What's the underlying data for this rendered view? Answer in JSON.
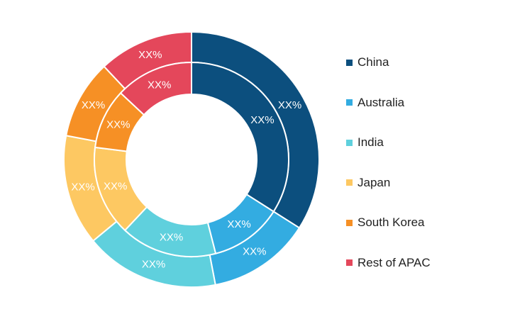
{
  "chart_data": {
    "type": "pie",
    "categories": [
      "China",
      "Australia",
      "India",
      "Japan",
      "South Korea",
      "Rest of APAC"
    ],
    "colors": [
      "#0c4f7e",
      "#33ace1",
      "#5fd0dd",
      "#fdc862",
      "#f69025",
      "#e4475b"
    ],
    "series": [
      {
        "values": [
          34,
          13,
          17,
          14,
          10,
          12
        ],
        "labels": [
          "XX%",
          "XX%",
          "XX%",
          "XX%",
          "XX%",
          "XX%"
        ]
      },
      {
        "values": [
          34,
          12,
          16,
          15,
          10,
          13
        ],
        "labels": [
          "XX%",
          "XX%",
          "XX%",
          "XX%",
          "XX%",
          "XX%"
        ]
      }
    ],
    "legend": {
      "placement": "right",
      "items": [
        "China",
        "Australia",
        "India",
        "Japan",
        "South Korea",
        "Rest of APAC"
      ]
    }
  }
}
